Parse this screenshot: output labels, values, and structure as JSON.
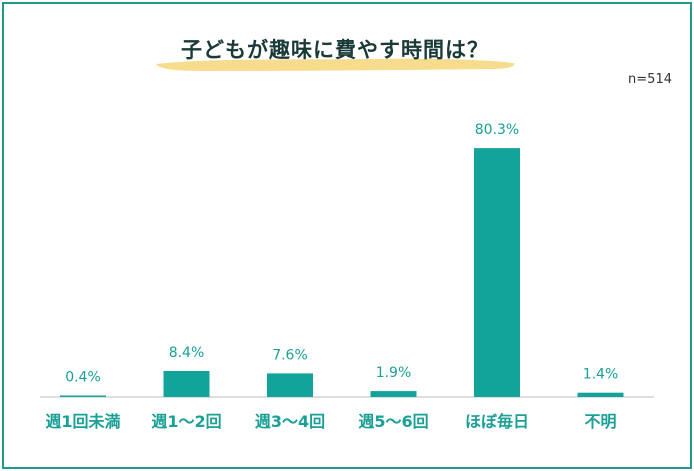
{
  "title": "子どもが趣味に費やす時間は？",
  "sample_size": "n=514",
  "colors": {
    "frame": "#1f9a8c",
    "bar": "#12a39a",
    "label": "#1aa096",
    "underline": "#f6d67a"
  },
  "chart_data": {
    "type": "bar",
    "title": "子どもが趣味に費やす時間は？",
    "categories": [
      "週1回未満",
      "週1～2回",
      "週3～4回",
      "週5～6回",
      "ほぼ毎日",
      "不明"
    ],
    "values": [
      0.4,
      8.4,
      7.6,
      1.9,
      80.3,
      1.4
    ],
    "value_labels": [
      "0.4%",
      "8.4%",
      "7.6%",
      "1.9%",
      "80.3%",
      "1.4%"
    ],
    "unit": "%",
    "ylim": [
      0,
      100
    ],
    "grid": false,
    "legend": "none"
  }
}
